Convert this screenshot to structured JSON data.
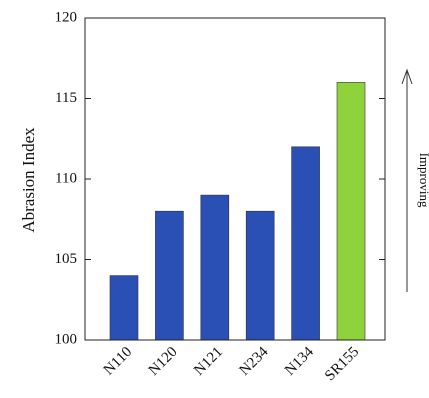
{
  "chart_data": {
    "type": "bar",
    "y_label": "Abrasion Index",
    "annotation": "Improving",
    "categories": [
      "N110",
      "N120",
      "N121",
      "N234",
      "N134",
      "SR155"
    ],
    "values": [
      104,
      108,
      109,
      108,
      112,
      116
    ],
    "colors": [
      "#2a4fb5",
      "#2a4fb5",
      "#2a4fb5",
      "#2a4fb5",
      "#2a4fb5",
      "#8ed23c"
    ],
    "ylim": [
      100,
      120
    ],
    "yticks": [
      100,
      105,
      110,
      115,
      120
    ],
    "grid": false
  }
}
